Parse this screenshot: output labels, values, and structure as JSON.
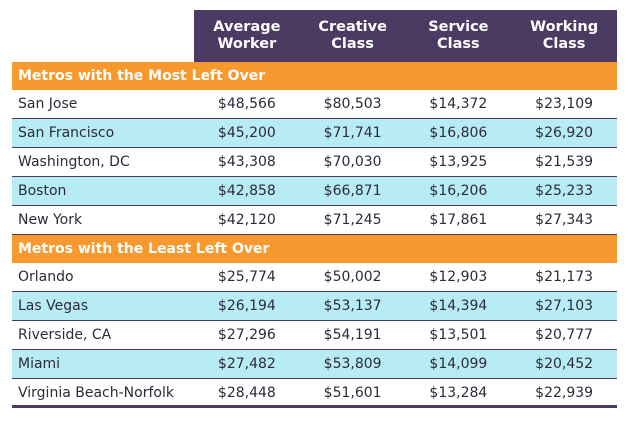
{
  "columns": [
    "Average\nWorker",
    "Creative\nClass",
    "Service\nClass",
    "Working\nClass"
  ],
  "sections": [
    {
      "title": "Metros with the Most Left Over",
      "rows": [
        {
          "metro": "San Jose",
          "values": [
            "$48,566",
            "$80,503",
            "$14,372",
            "$23,109"
          ]
        },
        {
          "metro": "San Francisco",
          "values": [
            "$45,200",
            "$71,741",
            "$16,806",
            "$26,920"
          ]
        },
        {
          "metro": "Washington, DC",
          "values": [
            "$43,308",
            "$70,030",
            "$13,925",
            "$21,539"
          ]
        },
        {
          "metro": "Boston",
          "values": [
            "$42,858",
            "$66,871",
            "$16,206",
            "$25,233"
          ]
        },
        {
          "metro": "New York",
          "values": [
            "$42,120",
            "$71,245",
            "$17,861",
            "$27,343"
          ]
        }
      ]
    },
    {
      "title": "Metros with the Least Left Over",
      "rows": [
        {
          "metro": "Orlando",
          "values": [
            "$25,774",
            "$50,002",
            "$12,903",
            "$21,173"
          ]
        },
        {
          "metro": "Las Vegas",
          "values": [
            "$26,194",
            "$53,137",
            "$14,394",
            "$27,103"
          ]
        },
        {
          "metro": "Riverside, CA",
          "values": [
            "$27,296",
            "$54,191",
            "$13,501",
            "$20,777"
          ]
        },
        {
          "metro": "Miami",
          "values": [
            "$27,482",
            "$53,809",
            "$14,099",
            "$20,452"
          ]
        },
        {
          "metro": "Virginia Beach-Norfolk",
          "values": [
            "$28,448",
            "$51,601",
            "$13,284",
            "$22,939"
          ]
        }
      ]
    }
  ],
  "colors": {
    "header": "#4b3b63",
    "section": "#f7992f",
    "alt_row": "#b8ecf4"
  }
}
